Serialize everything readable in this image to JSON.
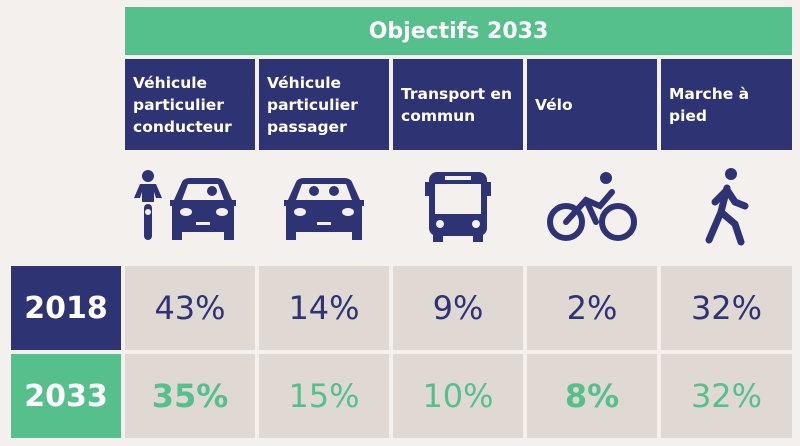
{
  "title": "Objectifs 2033",
  "colors": {
    "navy": "#2e3373",
    "green": "#55c08c",
    "cell": "#e0d9d3",
    "background": "#f3f0ed"
  },
  "columns": [
    {
      "label": "Véhicule particulier conducteur",
      "icon": "motorbike-and-car-icon"
    },
    {
      "label": "Véhicule particulier passager",
      "icon": "car-passengers-icon"
    },
    {
      "label": "Transport en commun",
      "icon": "bus-icon"
    },
    {
      "label": "Vélo",
      "icon": "cyclist-icon"
    },
    {
      "label": "Marche à pied",
      "icon": "pedestrian-icon"
    }
  ],
  "rows": [
    {
      "year": "2018",
      "values": [
        "43%",
        "14%",
        "9%",
        "2%",
        "32%"
      ],
      "bold": [
        false,
        false,
        false,
        false,
        false
      ]
    },
    {
      "year": "2033",
      "values": [
        "35%",
        "15%",
        "10%",
        "8%",
        "32%"
      ],
      "bold": [
        true,
        false,
        false,
        true,
        false
      ]
    }
  ]
}
